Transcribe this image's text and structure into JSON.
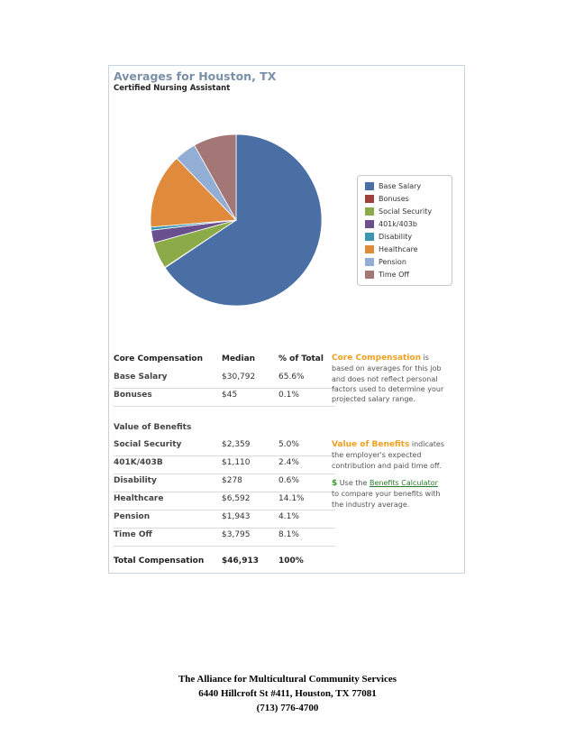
{
  "page": {
    "title": "Averages for Houston, TX",
    "subtitle": "Certified Nursing Assistant"
  },
  "chart_data": {
    "type": "pie",
    "categories": [
      "Base Salary",
      "Bonuses",
      "Social Security",
      "401k/403b",
      "Disability",
      "Healthcare",
      "Pension",
      "Time Off"
    ],
    "values": [
      65.6,
      0.1,
      5.0,
      2.4,
      0.6,
      14.1,
      4.1,
      8.1
    ],
    "colors": [
      "#4a6fa5",
      "#a0403c",
      "#8aab48",
      "#6a4f8f",
      "#3a97b2",
      "#e08a3c",
      "#93aed4",
      "#a37775"
    ],
    "legend_position": "right"
  },
  "table": {
    "header": {
      "col1": "Core Compensation",
      "col2": "Median",
      "col3": "% of Total"
    },
    "core": [
      {
        "label": "Base Salary",
        "median": "$30,792",
        "pct": "65.6%"
      },
      {
        "label": "Bonuses",
        "median": "$45",
        "pct": "0.1%"
      }
    ],
    "benefits_title": "Value of Benefits",
    "benefits": [
      {
        "label": "Social Security",
        "median": "$2,359",
        "pct": "5.0%"
      },
      {
        "label": "401K/403B",
        "median": "$1,110",
        "pct": "2.4%"
      },
      {
        "label": "Disability",
        "median": "$278",
        "pct": "0.6%"
      },
      {
        "label": "Healthcare",
        "median": "$6,592",
        "pct": "14.1%"
      },
      {
        "label": "Pension",
        "median": "$1,943",
        "pct": "4.1%"
      },
      {
        "label": "Time Off",
        "median": "$3,795",
        "pct": "8.1%"
      }
    ],
    "total": {
      "label": "Total Compensation",
      "median": "$46,913",
      "pct": "100%"
    }
  },
  "notes": {
    "core_title": "Core Compensation",
    "core_text1": " is",
    "core_text2": "based on averages for this job",
    "core_text3": "and does not reflect personal",
    "core_text4": "factors used to determine your",
    "core_text5": "projected salary range.",
    "benefits_title": "Value of Benefits",
    "benefits_text1": " indicates",
    "benefits_text2": "the employer's expected",
    "benefits_text3": "contribution and paid time off.",
    "calc_dollar": "$",
    "calc_pre": " Use the ",
    "calc_link": "Benefits Calculator",
    "calc_text2": "to compare your benefits with",
    "calc_text3": "the industry average."
  },
  "footer": {
    "line1": "The Alliance for Multicultural Community Services",
    "line2": "6440 Hillcroft St #411, Houston, TX 77081",
    "line3": "(713) 776-4700"
  }
}
